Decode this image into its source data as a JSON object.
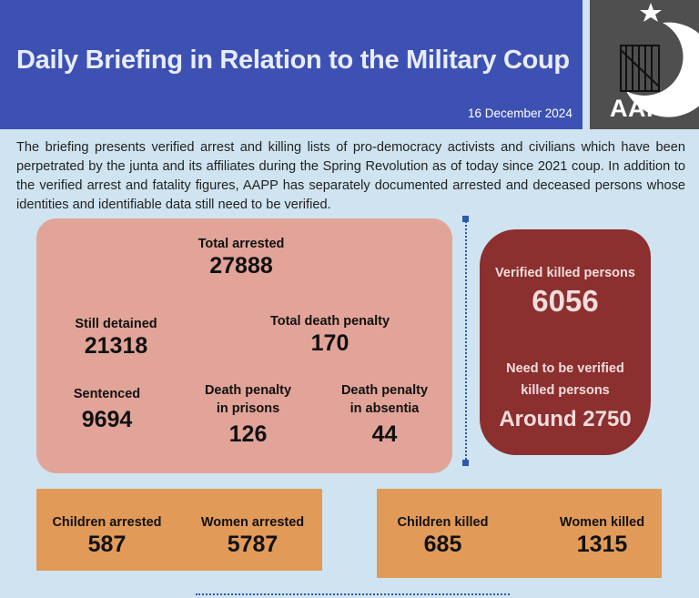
{
  "header": {
    "title": "Daily Briefing in Relation to the Military Coup",
    "date": "16 December 2024"
  },
  "logo": {
    "text": "AAPP"
  },
  "intro": "The briefing presents verified arrest and killing lists of pro-democracy activists and civilians which have been perpetrated by the junta and its affiliates during the Spring Revolution as of today since 2021 coup. In addition to the verified arrest and fatality figures, AAPP has separately documented arrested and deceased persons whose identities and identifiable data still need to be verified.",
  "arrests": {
    "total": {
      "label": "Total arrested",
      "value": "27888"
    },
    "detained": {
      "label": "Still detained",
      "value": "21318"
    },
    "death_penalty": {
      "label": "Total death penalty",
      "value": "170"
    },
    "sentenced": {
      "label": "Sentenced",
      "value": "9694"
    },
    "dp_prison": {
      "label1": "Death penalty",
      "label2": "in prisons",
      "value": "126"
    },
    "dp_absentia": {
      "label1": "Death penalty",
      "label2": "in absentia",
      "value": "44"
    }
  },
  "killed": {
    "verified": {
      "label": "Verified killed persons",
      "value": "6056"
    },
    "unverified": {
      "label1": "Need to be verified",
      "label2": "killed persons",
      "value": "Around 2750"
    }
  },
  "arrest_breakdown": {
    "children": {
      "label": "Children arrested",
      "value": "587"
    },
    "women": {
      "label": "Women arrested",
      "value": "5787"
    }
  },
  "killed_breakdown": {
    "children": {
      "label": "Children killed",
      "value": "685"
    },
    "women": {
      "label": "Women killed",
      "value": "1315"
    }
  },
  "colors": {
    "header": "#3d51b3",
    "arrest_box": "#e2a498",
    "killed_box": "#8b2f2f",
    "breakdown_box": "#e29a58",
    "background": "#cfe4f0"
  }
}
